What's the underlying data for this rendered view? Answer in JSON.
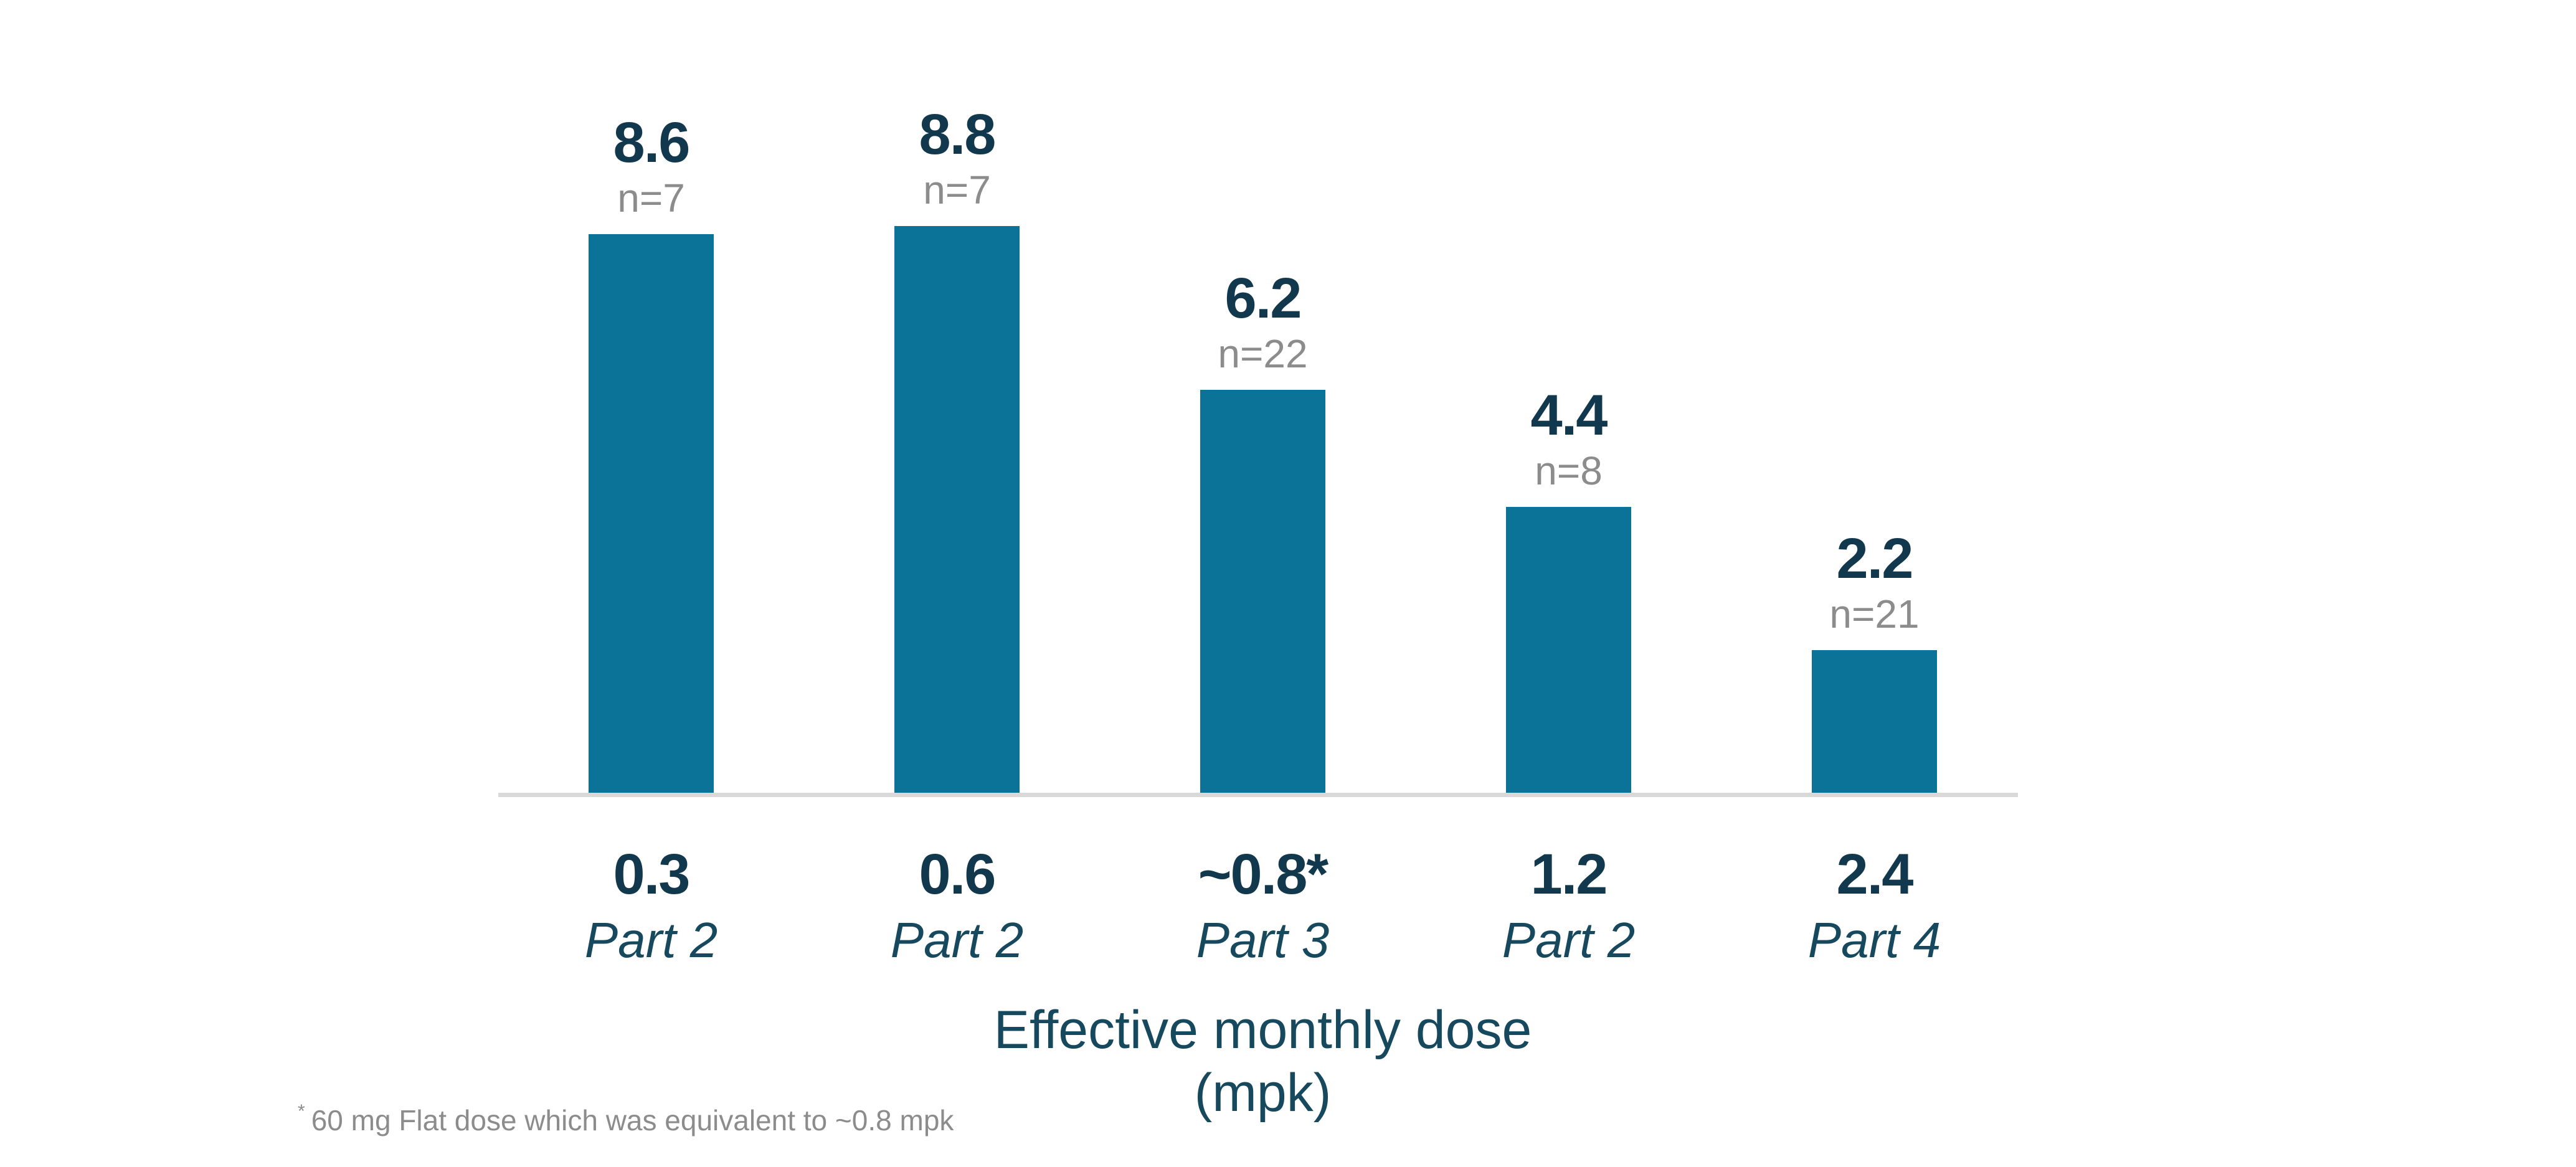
{
  "chart_data": {
    "type": "bar",
    "title": "",
    "xlabel": "Effective monthly dose (mpk)",
    "ylabel": "",
    "categories": [
      "0.3",
      "0.6",
      "~0.8*",
      "1.2",
      "2.4"
    ],
    "values": [
      8.6,
      8.8,
      6.2,
      4.4,
      2.2
    ],
    "n_values": [
      7,
      7,
      22,
      8,
      21
    ],
    "ylim": [
      0,
      9.2
    ],
    "grid": false,
    "legend": false,
    "bars": [
      {
        "value_label": "8.6",
        "n_label": "n=7",
        "dose": "0.3",
        "part": "Part 2"
      },
      {
        "value_label": "8.8",
        "n_label": "n=7",
        "dose": "0.6",
        "part": "Part 2"
      },
      {
        "value_label": "6.2",
        "n_label": "n=22",
        "dose": "~0.8*",
        "part": "Part 3"
      },
      {
        "value_label": "4.4",
        "n_label": "n=8",
        "dose": "1.2",
        "part": "Part 2"
      },
      {
        "value_label": "2.2",
        "n_label": "n=21",
        "dose": "2.4",
        "part": "Part 4"
      }
    ]
  },
  "axis_title": {
    "line1": "Effective monthly dose",
    "line2": "(mpk)"
  },
  "footnote": {
    "marker": "*",
    "text": "60 mg Flat dose which was equivalent to ~0.8 mpk"
  },
  "colors": {
    "bar": "#0C7398",
    "value_label": "#12384E",
    "n_label": "#8C8C8C",
    "axis_line": "#D9D9D9",
    "axis_title": "#17495E"
  }
}
